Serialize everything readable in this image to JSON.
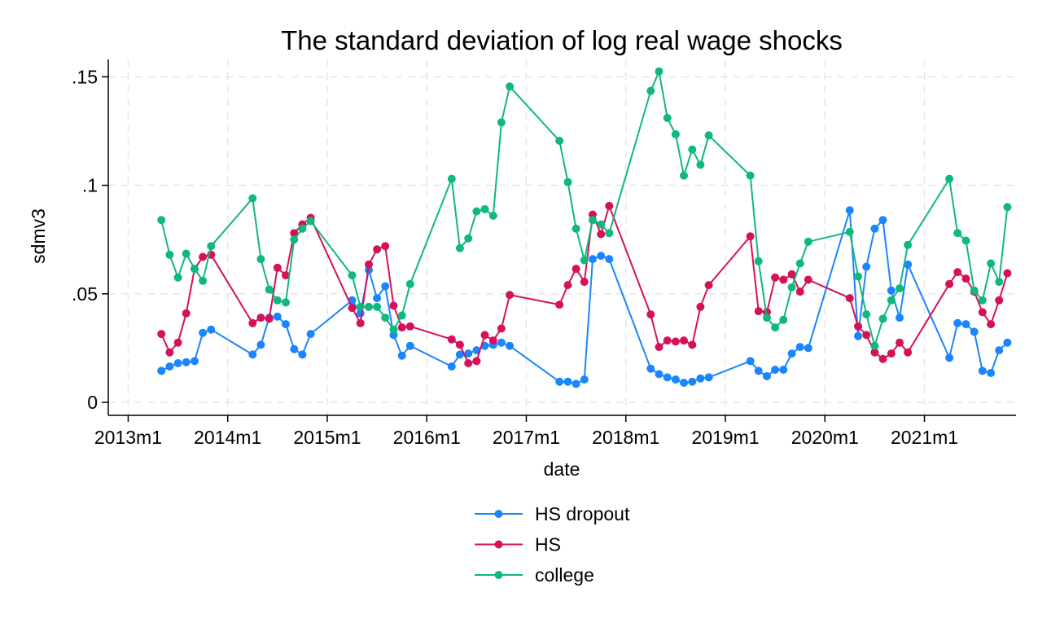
{
  "chart_data": {
    "type": "line",
    "title": "The standard deviation of log real wage shocks",
    "xlabel": "date",
    "ylabel": "sdmv3",
    "x_ticks": [
      {
        "value": 2013.0,
        "label": "2013m1"
      },
      {
        "value": 2014.0,
        "label": "2014m1"
      },
      {
        "value": 2015.0,
        "label": "2015m1"
      },
      {
        "value": 2016.0,
        "label": "2016m1"
      },
      {
        "value": 2017.0,
        "label": "2017m1"
      },
      {
        "value": 2018.0,
        "label": "2018m1"
      },
      {
        "value": 2019.0,
        "label": "2019m1"
      },
      {
        "value": 2020.0,
        "label": "2020m1"
      },
      {
        "value": 2021.0,
        "label": "2021m1"
      }
    ],
    "y_ticks": [
      {
        "value": 0,
        "label": "0"
      },
      {
        "value": 0.05,
        "label": ".05"
      },
      {
        "value": 0.1,
        "label": ".1"
      },
      {
        "value": 0.15,
        "label": ".15"
      }
    ],
    "xlim": [
      2012.8,
      2021.92
    ],
    "ylim": [
      -0.006,
      0.158
    ],
    "grid": true,
    "legend": "bottom",
    "series": [
      {
        "name": "HS dropout",
        "color": "#1a85ff",
        "x": [
          2013.333,
          2013.417,
          2013.5,
          2013.583,
          2013.667,
          2013.75,
          2013.833,
          2014.25,
          2014.333,
          2014.417,
          2014.5,
          2014.583,
          2014.667,
          2014.75,
          2014.833,
          2015.25,
          2015.333,
          2015.417,
          2015.5,
          2015.583,
          2015.667,
          2015.75,
          2015.833,
          2016.25,
          2016.333,
          2016.417,
          2016.5,
          2016.583,
          2016.667,
          2016.75,
          2016.833,
          2017.333,
          2017.417,
          2017.5,
          2017.583,
          2017.667,
          2017.75,
          2017.833,
          2018.25,
          2018.333,
          2018.417,
          2018.5,
          2018.583,
          2018.667,
          2018.75,
          2018.833,
          2019.25,
          2019.333,
          2019.417,
          2019.5,
          2019.583,
          2019.667,
          2019.75,
          2019.833,
          2020.25,
          2020.333,
          2020.417,
          2020.5,
          2020.583,
          2020.667,
          2020.75,
          2020.833,
          2021.25,
          2021.333,
          2021.417,
          2021.5,
          2021.583,
          2021.667,
          2021.75,
          2021.833
        ],
        "y": [
          0.0145,
          0.0165,
          0.018,
          0.0185,
          0.019,
          0.032,
          0.0335,
          0.022,
          0.0265,
          0.039,
          0.0395,
          0.036,
          0.0245,
          0.022,
          0.0315,
          0.047,
          0.041,
          0.061,
          0.048,
          0.0535,
          0.031,
          0.0215,
          0.026,
          0.0165,
          0.022,
          0.0225,
          0.024,
          0.026,
          0.0265,
          0.0275,
          0.026,
          0.0095,
          0.0095,
          0.0085,
          0.0105,
          0.066,
          0.0675,
          0.066,
          0.0155,
          0.013,
          0.0115,
          0.0105,
          0.009,
          0.0095,
          0.011,
          0.0115,
          0.019,
          0.0145,
          0.012,
          0.015,
          0.015,
          0.0225,
          0.0255,
          0.025,
          0.0885,
          0.0305,
          0.0625,
          0.08,
          0.084,
          0.0515,
          0.039,
          0.0635,
          0.0205,
          0.0365,
          0.036,
          0.0325,
          0.0145,
          0.0135,
          0.024,
          0.0275
        ]
      },
      {
        "name": "HS",
        "color": "#d41159",
        "x": [
          2013.333,
          2013.417,
          2013.5,
          2013.583,
          2013.667,
          2013.75,
          2013.833,
          2014.25,
          2014.333,
          2014.417,
          2014.5,
          2014.583,
          2014.667,
          2014.75,
          2014.833,
          2015.25,
          2015.333,
          2015.417,
          2015.5,
          2015.583,
          2015.667,
          2015.75,
          2015.833,
          2016.25,
          2016.333,
          2016.417,
          2016.5,
          2016.583,
          2016.667,
          2016.75,
          2016.833,
          2017.333,
          2017.417,
          2017.5,
          2017.583,
          2017.667,
          2017.75,
          2017.833,
          2018.25,
          2018.333,
          2018.417,
          2018.5,
          2018.583,
          2018.667,
          2018.75,
          2018.833,
          2019.25,
          2019.333,
          2019.417,
          2019.5,
          2019.583,
          2019.667,
          2019.75,
          2019.833,
          2020.25,
          2020.333,
          2020.417,
          2020.5,
          2020.583,
          2020.667,
          2020.75,
          2020.833,
          2021.25,
          2021.333,
          2021.417,
          2021.5,
          2021.583,
          2021.667,
          2021.75,
          2021.833
        ],
        "y": [
          0.0315,
          0.023,
          0.0275,
          0.041,
          0.0615,
          0.067,
          0.068,
          0.0365,
          0.039,
          0.0385,
          0.062,
          0.0585,
          0.078,
          0.082,
          0.085,
          0.0435,
          0.0365,
          0.0635,
          0.0705,
          0.072,
          0.0445,
          0.0345,
          0.035,
          0.029,
          0.0265,
          0.018,
          0.019,
          0.031,
          0.0285,
          0.034,
          0.0495,
          0.045,
          0.054,
          0.0615,
          0.0555,
          0.0865,
          0.0775,
          0.0905,
          0.0405,
          0.0255,
          0.0285,
          0.028,
          0.0285,
          0.0265,
          0.044,
          0.054,
          0.0765,
          0.042,
          0.0415,
          0.0575,
          0.0565,
          0.059,
          0.051,
          0.0565,
          0.048,
          0.035,
          0.031,
          0.023,
          0.02,
          0.0225,
          0.0275,
          0.023,
          0.0545,
          0.06,
          0.057,
          0.051,
          0.0415,
          0.036,
          0.047,
          0.0595
        ]
      },
      {
        "name": "college",
        "color": "#10b77f",
        "x": [
          2013.333,
          2013.417,
          2013.5,
          2013.583,
          2013.667,
          2013.75,
          2013.833,
          2014.25,
          2014.333,
          2014.417,
          2014.5,
          2014.583,
          2014.667,
          2014.75,
          2014.833,
          2015.25,
          2015.333,
          2015.417,
          2015.5,
          2015.583,
          2015.667,
          2015.75,
          2015.833,
          2016.25,
          2016.333,
          2016.417,
          2016.5,
          2016.583,
          2016.667,
          2016.75,
          2016.833,
          2017.333,
          2017.417,
          2017.5,
          2017.583,
          2017.667,
          2017.75,
          2017.833,
          2018.25,
          2018.333,
          2018.417,
          2018.5,
          2018.583,
          2018.667,
          2018.75,
          2018.833,
          2019.25,
          2019.333,
          2019.417,
          2019.5,
          2019.583,
          2019.667,
          2019.75,
          2019.833,
          2020.25,
          2020.333,
          2020.417,
          2020.5,
          2020.583,
          2020.667,
          2020.75,
          2020.833,
          2021.25,
          2021.333,
          2021.417,
          2021.5,
          2021.583,
          2021.667,
          2021.75,
          2021.833
        ],
        "y": [
          0.084,
          0.068,
          0.0575,
          0.0685,
          0.0615,
          0.056,
          0.072,
          0.094,
          0.066,
          0.052,
          0.047,
          0.046,
          0.075,
          0.08,
          0.0835,
          0.0585,
          0.044,
          0.044,
          0.044,
          0.039,
          0.0335,
          0.04,
          0.0545,
          0.103,
          0.071,
          0.0755,
          0.088,
          0.089,
          0.086,
          0.129,
          0.1455,
          0.1205,
          0.1015,
          0.08,
          0.0655,
          0.084,
          0.082,
          0.078,
          0.1435,
          0.1525,
          0.131,
          0.1235,
          0.1045,
          0.1165,
          0.1095,
          0.123,
          0.1045,
          0.065,
          0.039,
          0.0345,
          0.038,
          0.053,
          0.064,
          0.074,
          0.0785,
          0.058,
          0.0405,
          0.026,
          0.0385,
          0.047,
          0.0525,
          0.0725,
          0.103,
          0.078,
          0.0745,
          0.0515,
          0.047,
          0.064,
          0.0555,
          0.09
        ]
      }
    ]
  }
}
